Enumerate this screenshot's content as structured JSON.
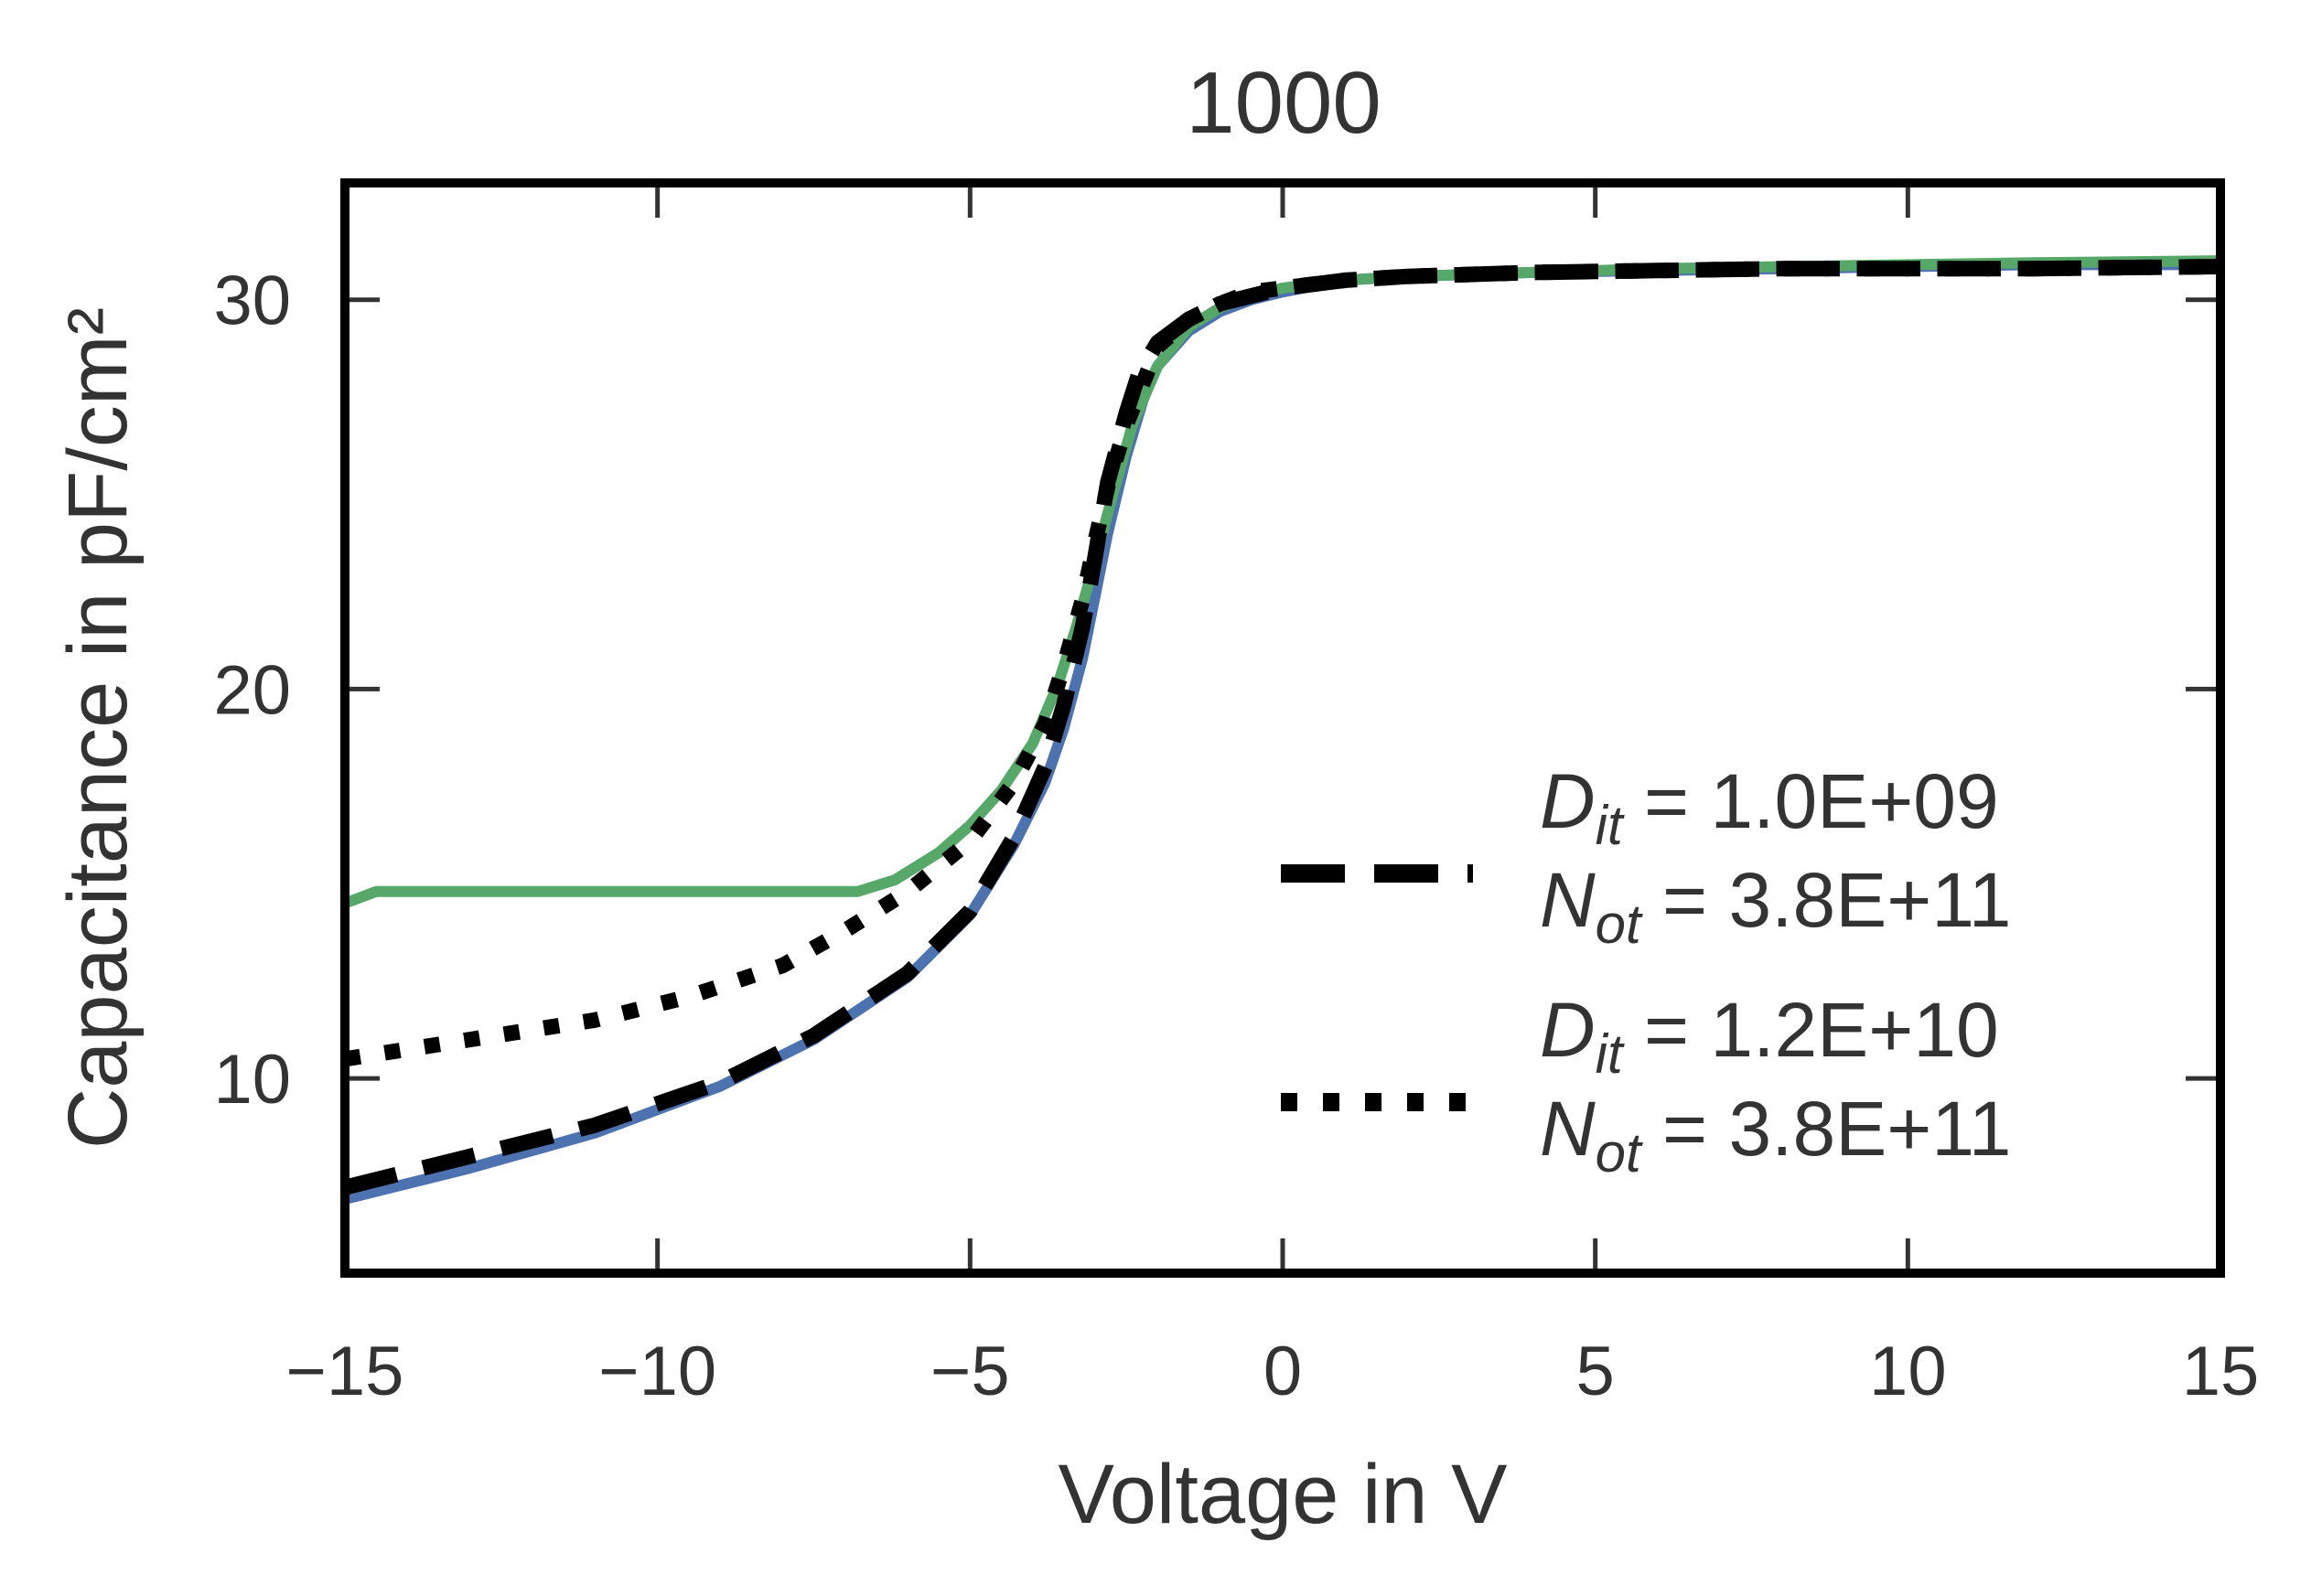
{
  "chart_data": {
    "type": "line",
    "title": "1000",
    "xlabel": "Voltage in V",
    "ylabel": "Capacitance in pF/cm²",
    "xlim": [
      -15,
      15
    ],
    "ylim": [
      5,
      33
    ],
    "xticks": [
      -15,
      -10,
      -5,
      0,
      5,
      10,
      15
    ],
    "xtick_labels": [
      "−15",
      "−10",
      "−5",
      "0",
      "5",
      "10",
      "15"
    ],
    "yticks": [
      10,
      20,
      30
    ],
    "ytick_labels": [
      "10",
      "20",
      "30"
    ],
    "grid": false,
    "legend_position": "lower-right",
    "legend": [
      {
        "style": "dashed",
        "line1": {
          "symbol": "D",
          "subscript": "it",
          "text": " = 1.0E+09"
        },
        "line2": {
          "symbol": "N",
          "subscript": "ot",
          "text": " = 3.8E+11"
        }
      },
      {
        "style": "dotted",
        "line1": {
          "symbol": "D",
          "subscript": "it",
          "text": " = 1.2E+10"
        },
        "line2": {
          "symbol": "N",
          "subscript": "ot",
          "text": " = 3.8E+11"
        }
      }
    ],
    "series": [
      {
        "style": "solid",
        "color": "#4c72b0",
        "x": [
          -15,
          -13,
          -11,
          -9,
          -7.5,
          -6,
          -5,
          -4.3,
          -3.8,
          -3.5,
          -3.2,
          -3.0,
          -2.8,
          -2.5,
          -2.2,
          -2.0,
          -1.5,
          -1.0,
          -0.5,
          0,
          1,
          2,
          4,
          6,
          8,
          10,
          12,
          15
        ],
        "y": [
          6.9,
          7.7,
          8.6,
          9.8,
          11.0,
          12.6,
          14.2,
          16.0,
          17.6,
          19.0,
          20.8,
          22.4,
          24.0,
          26.0,
          27.6,
          28.3,
          29.2,
          29.7,
          30.0,
          30.2,
          30.5,
          30.6,
          30.7,
          30.75,
          30.8,
          30.85,
          30.9,
          30.9
        ]
      },
      {
        "style": "solid",
        "color": "#55a868",
        "x": [
          -15,
          -14.5,
          -13,
          -11,
          -9,
          -7.5,
          -6.8,
          -6.2,
          -5.5,
          -5.0,
          -4.5,
          -4.0,
          -3.6,
          -3.3,
          -3.0,
          -2.7,
          -2.4,
          -2.0,
          -1.5,
          -1.0,
          -0.5,
          0,
          1,
          2,
          4,
          6,
          8,
          10,
          12,
          15
        ],
        "y": [
          14.5,
          14.8,
          14.8,
          14.8,
          14.8,
          14.8,
          14.8,
          15.1,
          15.8,
          16.5,
          17.4,
          18.6,
          20.1,
          21.6,
          23.3,
          25.1,
          26.8,
          28.3,
          29.3,
          29.8,
          30.1,
          30.3,
          30.5,
          30.6,
          30.7,
          30.8,
          30.85,
          30.9,
          30.95,
          31.0
        ]
      },
      {
        "style": "dashed",
        "color": "#000000",
        "x": [
          -15,
          -13,
          -11,
          -9,
          -7.5,
          -6,
          -5,
          -4.3,
          -3.8,
          -3.5,
          -3.2,
          -3.0,
          -2.8,
          -2.5,
          -2.3,
          -2.0,
          -1.5,
          -1.0,
          -0.5,
          0,
          1,
          2,
          4,
          6,
          8,
          10,
          12,
          15
        ],
        "y": [
          7.2,
          8.0,
          8.8,
          9.9,
          11.1,
          12.7,
          14.3,
          16.2,
          18.0,
          19.6,
          21.6,
          23.4,
          25.3,
          27.1,
          28.1,
          28.9,
          29.5,
          29.9,
          30.1,
          30.3,
          30.5,
          30.6,
          30.7,
          30.75,
          30.8,
          30.8,
          30.8,
          30.85
        ]
      },
      {
        "style": "dotted",
        "color": "#000000",
        "x": [
          -15,
          -13,
          -11,
          -9.5,
          -8,
          -7,
          -6,
          -5,
          -4.3,
          -3.8,
          -3.5,
          -3.2,
          -3.0,
          -2.8,
          -2.5,
          -2.2,
          -2.0,
          -1.5,
          -1.0,
          -0.5,
          0,
          1,
          2,
          4,
          6,
          8,
          10,
          12,
          15
        ],
        "y": [
          10.5,
          11.0,
          11.5,
          12.1,
          12.9,
          13.8,
          14.8,
          16.1,
          17.6,
          19.1,
          20.6,
          22.3,
          23.8,
          25.2,
          26.8,
          28.0,
          28.8,
          29.5,
          29.9,
          30.2,
          30.3,
          30.5,
          30.6,
          30.7,
          30.75,
          30.8,
          30.8,
          30.8,
          30.85
        ]
      }
    ]
  }
}
